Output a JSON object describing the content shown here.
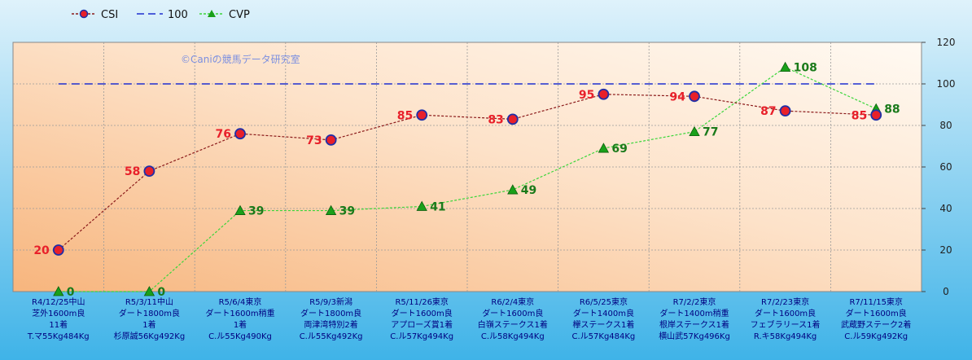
{
  "watermark": "©Caniの競馬データ研究室",
  "colors": {
    "csi_line": "#8b1a1a",
    "csi_marker": "#e8202a",
    "csi_marker_edge": "#1f2fa8",
    "csi_label": "#e8202a",
    "ref_line": "#1f2fd0",
    "cvp_line": "#3ad63a",
    "cvp_marker": "#1aa01a",
    "cvp_label": "#1a7a1a"
  },
  "chart_data": {
    "type": "line",
    "legend_position": "top-left",
    "ylim": [
      0,
      120
    ],
    "yticks": [
      0,
      20,
      40,
      60,
      80,
      100,
      120
    ],
    "grid": true,
    "categories": [
      [
        "R4/12/25中山",
        "芝外1600m良",
        "11着",
        "T.マ55Kg484Kg"
      ],
      [
        "R5/3/11中山",
        "ダート1800m良",
        "1着",
        "杉原誠56Kg492Kg"
      ],
      [
        "R5/6/4東京",
        "ダート1600m稍重",
        "1着",
        "C.ル55Kg490Kg"
      ],
      [
        "R5/9/3新潟",
        "ダート1800m良",
        "両津湾特別2着",
        "C.ル55Kg492Kg"
      ],
      [
        "R5/11/26東京",
        "ダート1600m良",
        "アプローズ賞1着",
        "C.ル57Kg494Kg"
      ],
      [
        "R6/2/4東京",
        "ダート1600m良",
        "白嶺ステークス1着",
        "C.ル58Kg494Kg"
      ],
      [
        "R6/5/25東京",
        "ダート1400m良",
        "欅ステークス1着",
        "C.ル57Kg484Kg"
      ],
      [
        "R7/2/2東京",
        "ダート1400m稍重",
        "根岸ステークス1着",
        "横山武57Kg496Kg"
      ],
      [
        "R7/2/23東京",
        "ダート1600m良",
        "フェブラリース1着",
        "R.キ58Kg494Kg"
      ],
      [
        "R7/11/15東京",
        "ダート1600m良",
        "武蔵野ステーク2着",
        "C.ル59Kg492Kg"
      ]
    ],
    "series": [
      {
        "name": "CSI",
        "values": [
          20,
          58,
          76,
          73,
          85,
          83,
          95,
          94,
          87,
          85
        ]
      },
      {
        "name": "100",
        "values": [
          100,
          100,
          100,
          100,
          100,
          100,
          100,
          100,
          100,
          100
        ]
      },
      {
        "name": "CVP",
        "values": [
          0,
          0,
          39,
          39,
          41,
          49,
          69,
          77,
          108,
          88
        ]
      }
    ]
  }
}
